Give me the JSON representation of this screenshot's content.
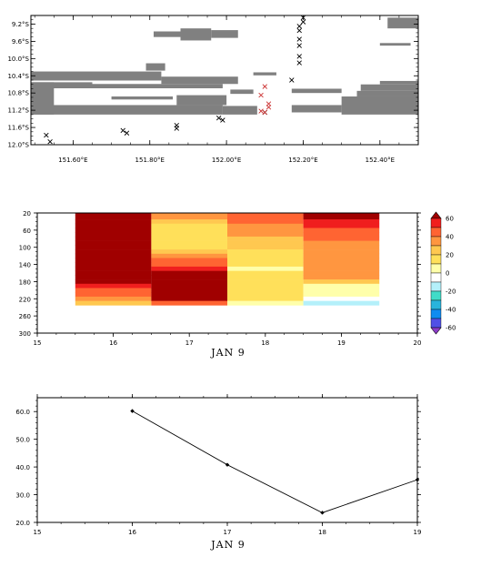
{
  "chart_data": [
    {
      "type": "scatter",
      "title": "",
      "xlabel": "",
      "ylabel": "",
      "xlim": [
        151.49,
        152.5
      ],
      "ylim": [
        -12.0,
        -9.0
      ],
      "x_ticks": [
        "151.60°E",
        "151.80°E",
        "152.00°E",
        "152.20°E",
        "152.40°E"
      ],
      "y_ticks": [
        "9.2°S",
        "9.6°S",
        "10.0°S",
        "10.4°S",
        "10.8°S",
        "11.2°S",
        "11.6°S",
        "12.0°S"
      ],
      "gray_color": "#808080",
      "land_bands": [
        {
          "lon": [
            151.49,
            151.83
          ],
          "lat": [
            -10.51,
            -10.3
          ]
        },
        {
          "lon": [
            151.83,
            152.03
          ],
          "lat": [
            -10.59,
            -10.42
          ]
        },
        {
          "lon": [
            151.55,
            151.99
          ],
          "lat": [
            -10.69,
            -10.59
          ]
        },
        {
          "lon": [
            151.49,
            151.65
          ],
          "lat": [
            -10.69,
            -10.55
          ]
        },
        {
          "lon": [
            151.49,
            151.55
          ],
          "lat": [
            -11.3,
            -10.55
          ]
        },
        {
          "lon": [
            151.49,
            151.99
          ],
          "lat": [
            -11.3,
            -11.08
          ]
        },
        {
          "lon": [
            151.87,
            152.0
          ],
          "lat": [
            -11.08,
            -10.85
          ]
        },
        {
          "lon": [
            151.99,
            152.08
          ],
          "lat": [
            -11.3,
            -11.1
          ]
        },
        {
          "lon": [
            152.01,
            152.07
          ],
          "lat": [
            -10.82,
            -10.72
          ]
        },
        {
          "lon": [
            151.7,
            151.86
          ],
          "lat": [
            -10.95,
            -10.88
          ]
        },
        {
          "lon": [
            151.88,
            151.96
          ],
          "lat": [
            -9.58,
            -9.3
          ]
        },
        {
          "lon": [
            151.96,
            152.03
          ],
          "lat": [
            -9.52,
            -9.34
          ]
        },
        {
          "lon": [
            151.81,
            151.88
          ],
          "lat": [
            -9.5,
            -9.37
          ]
        },
        {
          "lon": [
            151.79,
            151.84
          ],
          "lat": [
            -10.28,
            -10.11
          ]
        },
        {
          "lon": [
            152.07,
            152.13
          ],
          "lat": [
            -10.39,
            -10.32
          ]
        },
        {
          "lon": [
            152.17,
            152.3
          ],
          "lat": [
            -11.25,
            -11.08
          ]
        },
        {
          "lon": [
            152.3,
            152.5
          ],
          "lat": [
            -11.3,
            -10.88
          ]
        },
        {
          "lon": [
            152.34,
            152.5
          ],
          "lat": [
            -10.88,
            -10.75
          ]
        },
        {
          "lon": [
            152.35,
            152.5
          ],
          "lat": [
            -10.75,
            -10.6
          ]
        },
        {
          "lon": [
            152.4,
            152.5
          ],
          "lat": [
            -10.6,
            -10.52
          ]
        },
        {
          "lon": [
            152.17,
            152.3
          ],
          "lat": [
            -10.8,
            -10.7
          ]
        },
        {
          "lon": [
            152.42,
            152.5
          ],
          "lat": [
            -9.3,
            -9.05
          ]
        },
        {
          "lon": [
            152.4,
            152.48
          ],
          "lat": [
            -9.7,
            -9.64
          ]
        }
      ],
      "series": [
        {
          "color": "#000000",
          "marker": "x",
          "points": [
            [
              152.2,
              -9.05
            ],
            [
              152.2,
              -9.15
            ],
            [
              152.19,
              -9.25
            ],
            [
              152.19,
              -9.35
            ],
            [
              152.19,
              -9.55
            ],
            [
              152.19,
              -9.7
            ],
            [
              152.19,
              -9.95
            ],
            [
              152.19,
              -10.1
            ],
            [
              152.17,
              -10.5
            ],
            [
              152.1,
              -11.25
            ],
            [
              151.98,
              -11.38
            ],
            [
              151.99,
              -11.43
            ],
            [
              151.87,
              -11.55
            ],
            [
              151.87,
              -11.62
            ],
            [
              151.73,
              -11.67
            ],
            [
              151.74,
              -11.73
            ],
            [
              151.53,
              -11.78
            ],
            [
              151.54,
              -11.93
            ]
          ]
        },
        {
          "color": "#cc3333",
          "marker": "x",
          "points": [
            [
              152.1,
              -10.65
            ],
            [
              152.09,
              -10.85
            ],
            [
              152.11,
              -11.05
            ],
            [
              152.11,
              -11.13
            ],
            [
              152.09,
              -11.22
            ],
            [
              152.1,
              -11.25
            ]
          ]
        }
      ]
    },
    {
      "type": "heatmap",
      "xlabel": "JAN   9",
      "ylabel": "",
      "x_ticks": [
        "15",
        "16",
        "17",
        "18",
        "19",
        "20"
      ],
      "y_ticks": [
        "20",
        "60",
        "100",
        "140",
        "180",
        "220",
        "260",
        "300"
      ],
      "xlim": [
        15,
        20
      ],
      "ylim": [
        300,
        20
      ],
      "columns": [
        16,
        17,
        18,
        19
      ],
      "depths": [
        20,
        30,
        40,
        50,
        60,
        70,
        80,
        90,
        100,
        110,
        120,
        130,
        140,
        150,
        160,
        170,
        180,
        190,
        200,
        210,
        220,
        230
      ],
      "values": [
        [
          62,
          62,
          62,
          62,
          62,
          62,
          62,
          62,
          62,
          62,
          62,
          62,
          62,
          62,
          62,
          62,
          62,
          55,
          48,
          42,
          35,
          28
        ],
        [
          34,
          30,
          25,
          18,
          13,
          12,
          10,
          12,
          18,
          25,
          30,
          42,
          48,
          55,
          62,
          62,
          62,
          62,
          62,
          62,
          62,
          45
        ],
        [
          45,
          45,
          42,
          38,
          35,
          30,
          25,
          22,
          20,
          18,
          15,
          12,
          10,
          8,
          13,
          13,
          13,
          13,
          13,
          13,
          10,
          6
        ],
        [
          62,
          62,
          58,
          55,
          48,
          45,
          42,
          38,
          38,
          35,
          35,
          33,
          33,
          30,
          30,
          30,
          22,
          6,
          6,
          4,
          -4,
          -12
        ]
      ],
      "colorbar": {
        "labels": [
          "60",
          "40",
          "20",
          "0",
          "-20",
          "-40",
          "-60"
        ],
        "levels": [
          -60,
          -50,
          -40,
          -30,
          -20,
          -10,
          0,
          10,
          20,
          30,
          40,
          50,
          60
        ],
        "colors": [
          "#8C3CC8",
          "#5050E6",
          "#0F8CF0",
          "#28B4DC",
          "#41DCC8",
          "#B4F0FA",
          "#FFFFFF",
          "#FFFFAA",
          "#FFE05A",
          "#FFC850",
          "#FF9640",
          "#FF6432",
          "#F01E1E",
          "#A00000"
        ]
      }
    },
    {
      "type": "line",
      "xlabel": "JAN   9",
      "ylabel": "",
      "x_ticks": [
        "15",
        "16",
        "17",
        "18",
        "19"
      ],
      "y_ticks": [
        "20.0",
        "30.0",
        "40.0",
        "50.0",
        "60.0"
      ],
      "xlim": [
        15,
        19
      ],
      "ylim": [
        20,
        65
      ],
      "x": [
        16,
        17,
        18,
        19
      ],
      "y": [
        60.2,
        40.8,
        23.5,
        35.4
      ]
    }
  ]
}
